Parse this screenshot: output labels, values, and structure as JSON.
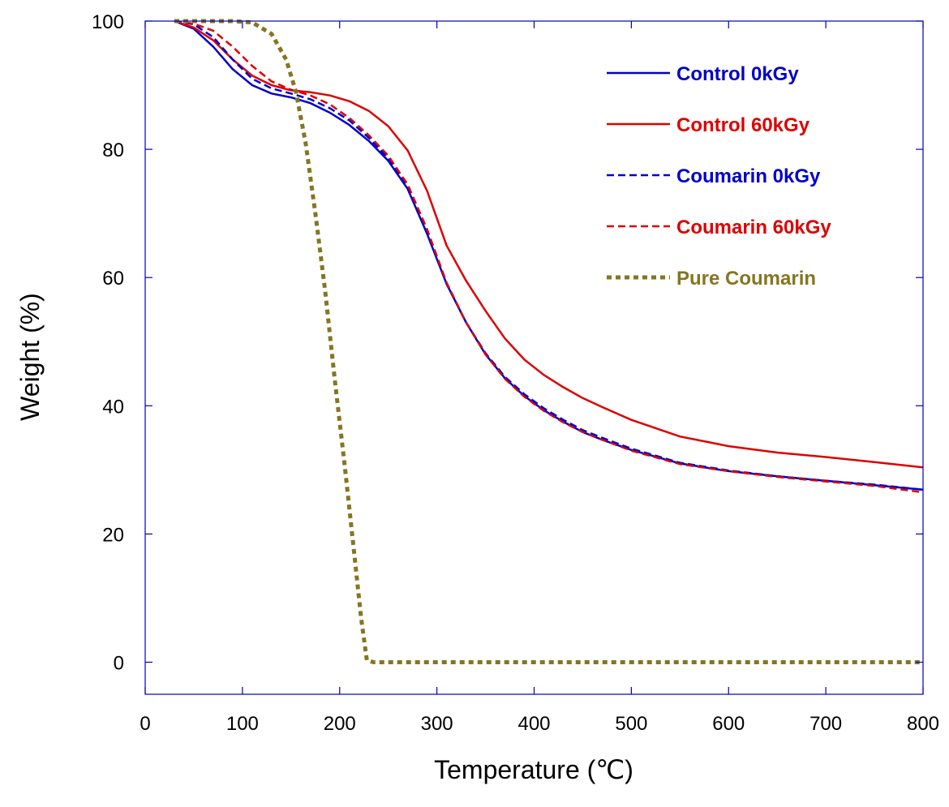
{
  "chart_data": {
    "type": "line",
    "title": "",
    "xlabel": "Temperature (℃)",
    "ylabel": "Weight (%)",
    "xlim": [
      0,
      800
    ],
    "ylim": [
      -5,
      100
    ],
    "xticks": [
      0,
      100,
      200,
      300,
      400,
      500,
      600,
      700,
      800
    ],
    "yticks": [
      0,
      20,
      40,
      60,
      80,
      100
    ],
    "grid": false,
    "legend_position": "top-right",
    "series": [
      {
        "name": "Control 0kGy",
        "color": "#0000cc",
        "dash": "solid",
        "x": [
          30,
          50,
          70,
          90,
          110,
          130,
          150,
          170,
          190,
          210,
          230,
          250,
          270,
          290,
          310,
          330,
          350,
          370,
          390,
          410,
          430,
          450,
          470,
          500,
          550,
          600,
          650,
          700,
          750,
          800
        ],
        "y": [
          100,
          98.8,
          96,
          92.5,
          90,
          88.7,
          88.1,
          87.2,
          85.7,
          83.8,
          81.3,
          78.2,
          73.8,
          66.8,
          59,
          53,
          48,
          44.3,
          41.5,
          39.3,
          37.5,
          35.9,
          34.7,
          33.1,
          31,
          29.8,
          29,
          28.3,
          27.6,
          26.9
        ]
      },
      {
        "name": "Control 60kGy",
        "color": "#dd0000",
        "dash": "solid",
        "x": [
          30,
          50,
          70,
          90,
          110,
          130,
          150,
          170,
          190,
          210,
          230,
          250,
          270,
          290,
          310,
          330,
          350,
          370,
          390,
          410,
          430,
          450,
          470,
          500,
          550,
          600,
          650,
          700,
          750,
          800
        ],
        "y": [
          100,
          99,
          97,
          94,
          91.5,
          90,
          89.2,
          88.9,
          88.4,
          87.5,
          86,
          83.6,
          79.8,
          73.5,
          65,
          59.5,
          54.8,
          50.5,
          47.2,
          44.8,
          42.9,
          41.2,
          39.8,
          37.8,
          35.2,
          33.7,
          32.7,
          32,
          31.2,
          30.4
        ]
      },
      {
        "name": "Coumarin 0kGy",
        "color": "#0000cc",
        "dash": "dashed",
        "x": [
          30,
          50,
          70,
          90,
          110,
          130,
          150,
          170,
          190,
          210,
          230,
          250,
          270,
          290,
          310,
          330,
          350,
          370,
          390,
          410,
          430,
          450,
          470,
          500,
          550,
          600,
          650,
          700,
          750,
          800
        ],
        "y": [
          100,
          99.5,
          97.5,
          94,
          91,
          89.5,
          88.7,
          87.8,
          86.4,
          84.5,
          81.8,
          78.6,
          74.2,
          67,
          59,
          53,
          48.2,
          44.5,
          41.8,
          39.6,
          37.8,
          36.2,
          35,
          33.3,
          31.1,
          29.9,
          29,
          28.3,
          27.7,
          26.9
        ]
      },
      {
        "name": "Coumarin 60kGy",
        "color": "#dd0000",
        "dash": "dashed",
        "x": [
          30,
          50,
          70,
          90,
          110,
          130,
          150,
          170,
          190,
          210,
          230,
          250,
          270,
          290,
          310,
          330,
          350,
          370,
          390,
          410,
          430,
          450,
          470,
          500,
          550,
          600,
          650,
          700,
          750,
          800
        ],
        "y": [
          100,
          99.6,
          98.5,
          96,
          93,
          90.6,
          89.3,
          88.4,
          87,
          84.9,
          82.2,
          79,
          74.5,
          67.5,
          59.2,
          53,
          48,
          44.2,
          41.4,
          39.2,
          37.4,
          35.9,
          34.7,
          33,
          30.9,
          29.8,
          28.9,
          28.2,
          27.5,
          26.5
        ]
      },
      {
        "name": "Pure Coumarin",
        "color": "#857521",
        "dash": "dotted",
        "x": [
          30,
          60,
          90,
          110,
          130,
          145,
          155,
          165,
          175,
          185,
          195,
          205,
          215,
          222,
          228,
          235,
          300,
          400,
          500,
          600,
          700,
          800
        ],
        "y": [
          100,
          100,
          100,
          99.8,
          98,
          94,
          89,
          81,
          70,
          58,
          44,
          31,
          17,
          7,
          0.3,
          0,
          0,
          0,
          0,
          0,
          0,
          0
        ]
      }
    ]
  }
}
